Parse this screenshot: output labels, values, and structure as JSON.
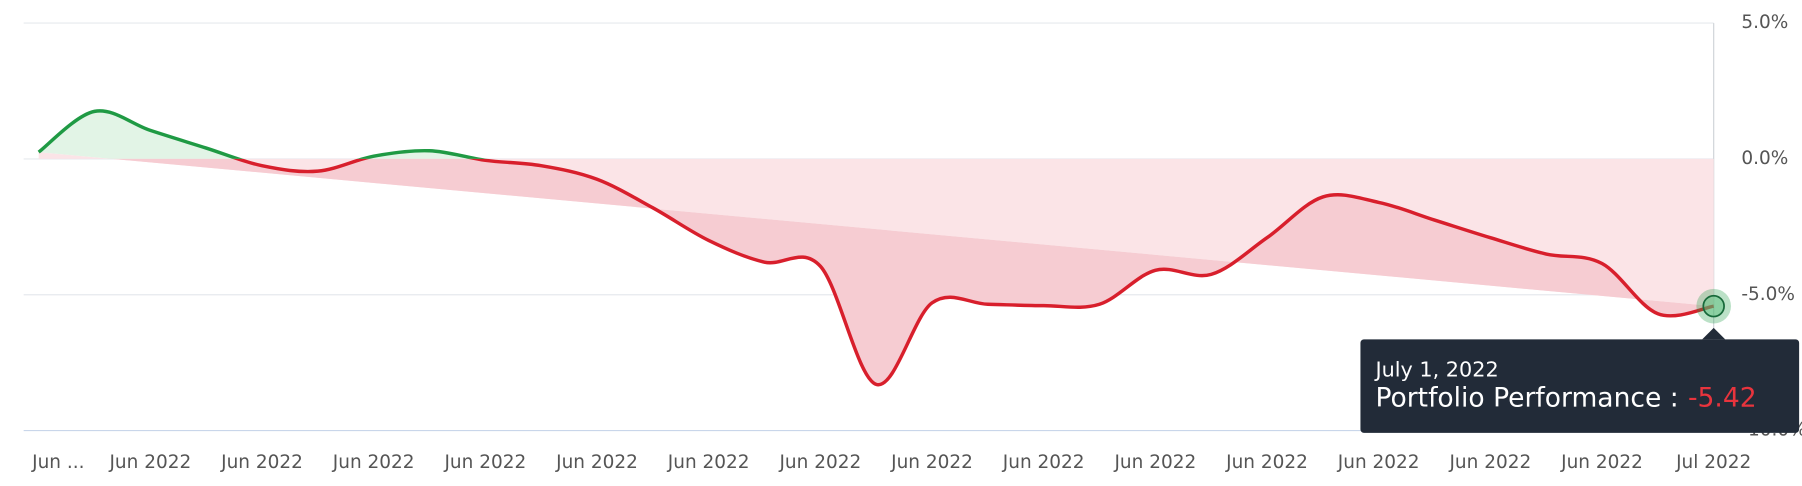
{
  "chart_data": {
    "type": "line",
    "categories": [
      "Jun ...",
      null,
      "Jun 2022",
      null,
      "Jun 2022",
      null,
      "Jun 2022",
      null,
      "Jun 2022",
      null,
      "Jun 2022",
      null,
      "Jun 2022",
      null,
      "Jun 2022",
      null,
      "Jun 2022",
      null,
      "Jun 2022",
      null,
      "Jun 2022",
      null,
      "Jun 2022",
      null,
      "Jun 2022",
      null,
      "Jun 2022",
      null,
      "Jun 2022",
      null,
      "Jul 2022"
    ],
    "values": [
      0.25,
      1.75,
      1.05,
      0.4,
      -0.25,
      -0.45,
      0.1,
      0.3,
      -0.05,
      -0.25,
      -0.75,
      -1.8,
      -3.0,
      -3.8,
      -3.95,
      -8.3,
      -5.3,
      -5.35,
      -5.4,
      -5.35,
      -4.1,
      -4.25,
      -2.9,
      -1.4,
      -1.6,
      -2.25,
      -2.9,
      -3.5,
      -3.85,
      -5.7,
      -5.42
    ],
    "positive_color": "#1f9a44",
    "negative_color": "#d81f2c",
    "ylim": [
      -10,
      5
    ],
    "yticks": [
      {
        "value": 5,
        "label": "5.0%"
      },
      {
        "value": 0,
        "label": "0.0%"
      },
      {
        "value": -5,
        "label": "-5.0%"
      },
      {
        "value": -10,
        "label": "-10.0%"
      }
    ],
    "grid": true,
    "tooltip": {
      "date": "July 1, 2022",
      "label": "Portfolio Performance :"
    }
  }
}
